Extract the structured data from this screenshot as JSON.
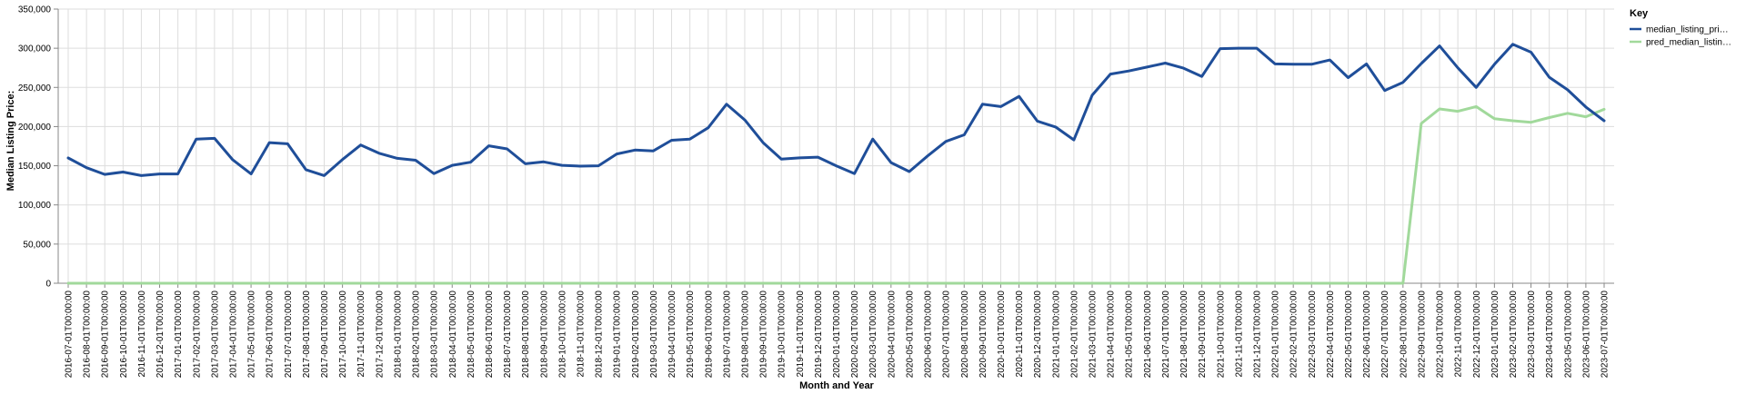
{
  "chart_data": {
    "type": "line",
    "title": "",
    "xlabel": "Month and Year",
    "ylabel": "Median Listing Price:",
    "ylim": [
      0,
      350000
    ],
    "y_ticks": [
      "0",
      "50,000",
      "100,000",
      "150,000",
      "200,000",
      "250,000",
      "300,000",
      "350,000"
    ],
    "grid": true,
    "legend": {
      "title": "Key",
      "placement": "top-right",
      "entries": [
        "median_listing_pri…",
        "pred_median_listin…"
      ]
    },
    "x": [
      "2016-07-01T00:00:00",
      "2016-08-01T00:00:00",
      "2016-09-01T00:00:00",
      "2016-10-01T00:00:00",
      "2016-11-01T00:00:00",
      "2016-12-01T00:00:00",
      "2017-01-01T00:00:00",
      "2017-02-01T00:00:00",
      "2017-03-01T00:00:00",
      "2017-04-01T00:00:00",
      "2017-05-01T00:00:00",
      "2017-06-01T00:00:00",
      "2017-07-01T00:00:00",
      "2017-08-01T00:00:00",
      "2017-09-01T00:00:00",
      "2017-10-01T00:00:00",
      "2017-11-01T00:00:00",
      "2017-12-01T00:00:00",
      "2018-01-01T00:00:00",
      "2018-02-01T00:00:00",
      "2018-03-01T00:00:00",
      "2018-04-01T00:00:00",
      "2018-05-01T00:00:00",
      "2018-06-01T00:00:00",
      "2018-07-01T00:00:00",
      "2018-08-01T00:00:00",
      "2018-09-01T00:00:00",
      "2018-10-01T00:00:00",
      "2018-11-01T00:00:00",
      "2018-12-01T00:00:00",
      "2019-01-01T00:00:00",
      "2019-02-01T00:00:00",
      "2019-03-01T00:00:00",
      "2019-04-01T00:00:00",
      "2019-05-01T00:00:00",
      "2019-06-01T00:00:00",
      "2019-07-01T00:00:00",
      "2019-08-01T00:00:00",
      "2019-09-01T00:00:00",
      "2019-10-01T00:00:00",
      "2019-11-01T00:00:00",
      "2019-12-01T00:00:00",
      "2020-01-01T00:00:00",
      "2020-02-01T00:00:00",
      "2020-03-01T00:00:00",
      "2020-04-01T00:00:00",
      "2020-05-01T00:00:00",
      "2020-06-01T00:00:00",
      "2020-07-01T00:00:00",
      "2020-08-01T00:00:00",
      "2020-09-01T00:00:00",
      "2020-10-01T00:00:00",
      "2020-11-01T00:00:00",
      "2020-12-01T00:00:00",
      "2021-01-01T00:00:00",
      "2021-02-01T00:00:00",
      "2021-03-01T00:00:00",
      "2021-04-01T00:00:00",
      "2021-05-01T00:00:00",
      "2021-06-01T00:00:00",
      "2021-07-01T00:00:00",
      "2021-08-01T00:00:00",
      "2021-09-01T00:00:00",
      "2021-10-01T00:00:00",
      "2021-11-01T00:00:00",
      "2021-12-01T00:00:00",
      "2022-01-01T00:00:00",
      "2022-02-01T00:00:00",
      "2022-03-01T00:00:00",
      "2022-04-01T00:00:00",
      "2022-05-01T00:00:00",
      "2022-06-01T00:00:00",
      "2022-07-01T00:00:00",
      "2022-08-01T00:00:00",
      "2022-09-01T00:00:00",
      "2022-10-01T00:00:00",
      "2022-11-01T00:00:00",
      "2022-12-01T00:00:00",
      "2023-01-01T00:00:00",
      "2023-02-01T00:00:00",
      "2023-03-01T00:00:00",
      "2023-04-01T00:00:00",
      "2023-05-01T00:00:00",
      "2023-06-01T00:00:00",
      "2023-07-01T00:00:00"
    ],
    "series": [
      {
        "name": "median_listing_pri…",
        "color": "#1f4e99",
        "values": [
          159900,
          147500,
          139000,
          142000,
          137500,
          139500,
          139500,
          184000,
          185000,
          157500,
          139500,
          179500,
          178000,
          145000,
          137500,
          158000,
          176500,
          166000,
          159500,
          157000,
          140000,
          150500,
          154500,
          175500,
          171500,
          152500,
          155000,
          150500,
          149500,
          150000,
          165000,
          170000,
          169000,
          182500,
          184000,
          198500,
          228500,
          208500,
          179500,
          158500,
          160000,
          161000,
          150000,
          140000,
          184000,
          154000,
          142500,
          162500,
          181000,
          189500,
          228500,
          225500,
          238500,
          207000,
          199500,
          183000,
          240000,
          267000,
          271000,
          276000,
          281000,
          274500,
          264000,
          299500,
          300000,
          300000,
          280000,
          279500,
          279500,
          285000,
          262500,
          280000,
          246000,
          256500,
          280500,
          303000,
          275000,
          250000,
          279500,
          305000,
          295000,
          263000,
          247000,
          225000,
          207500
        ]
      },
      {
        "name": "pred_median_listin…",
        "color": "#a1d99b",
        "values": [
          0,
          0,
          0,
          0,
          0,
          0,
          0,
          0,
          0,
          0,
          0,
          0,
          0,
          0,
          0,
          0,
          0,
          0,
          0,
          0,
          0,
          0,
          0,
          0,
          0,
          0,
          0,
          0,
          0,
          0,
          0,
          0,
          0,
          0,
          0,
          0,
          0,
          0,
          0,
          0,
          0,
          0,
          0,
          0,
          0,
          0,
          0,
          0,
          0,
          0,
          0,
          0,
          0,
          0,
          0,
          0,
          0,
          0,
          0,
          0,
          0,
          0,
          0,
          0,
          0,
          0,
          0,
          0,
          0,
          0,
          0,
          0,
          0,
          0,
          204000,
          222500,
          219500,
          225500,
          210000,
          207500,
          205500,
          211500,
          217000,
          212500,
          222000
        ]
      }
    ]
  }
}
